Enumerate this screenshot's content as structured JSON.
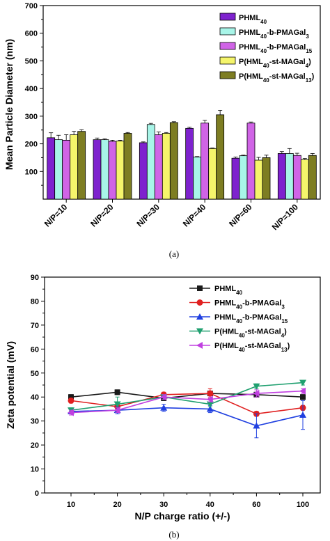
{
  "chart_data": [
    {
      "type": "bar",
      "panel_label": "(a)",
      "ylabel": "Mean Particle Diameter (nm)",
      "xlabel": "",
      "ylim": [
        0,
        700
      ],
      "yticks": [
        100,
        200,
        300,
        400,
        500,
        600,
        700
      ],
      "categories": [
        "N/P=10",
        "N/P=20",
        "N/P=30",
        "N/P=40",
        "N/P=60",
        "N/P=100"
      ],
      "legend_position": "top-right",
      "series": [
        {
          "name": "PHML40",
          "label": {
            "pre": "PHML",
            "sub1": "40",
            "mid": "",
            "sub2": "",
            "post": ""
          },
          "color": "#7e22ce",
          "values": [
            222,
            215,
            204,
            256,
            148,
            165
          ],
          "errors": [
            18,
            6,
            3,
            4,
            4,
            7
          ]
        },
        {
          "name": "PHML40-b-PMAGal3",
          "label": {
            "pre": "PHML",
            "sub1": "40",
            "mid": "-b-PMAGal",
            "sub2": "3",
            "post": ""
          },
          "color": "#a8f5e8",
          "values": [
            215,
            215,
            270,
            152,
            157,
            165
          ],
          "errors": [
            16,
            3,
            4,
            2,
            2,
            18
          ]
        },
        {
          "name": "PHML40-b-PMAGal15",
          "label": {
            "pre": "PHML",
            "sub1": "40",
            "mid": "-b-PMAGal",
            "sub2": "15",
            "post": ""
          },
          "color": "#d064e6",
          "values": [
            213,
            209,
            233,
            275,
            275,
            158
          ],
          "errors": [
            20,
            4,
            10,
            10,
            4,
            8
          ]
        },
        {
          "name": "P(HML40-st-MAGal4)",
          "label": {
            "pre": "P(HML",
            "sub1": "40",
            "mid": "-st-MAGal",
            "sub2": "4",
            "post": ")"
          },
          "color": "#f5f56b",
          "values": [
            233,
            210,
            238,
            183,
            141,
            143
          ],
          "errors": [
            12,
            3,
            3,
            2,
            10,
            4
          ]
        },
        {
          "name": "P(HML40-st-MAGal13)",
          "label": {
            "pre": "P(HML",
            "sub1": "40",
            "mid": "-st-MAGal",
            "sub2": "13",
            "post": ")"
          },
          "color": "#7d7d22",
          "values": [
            245,
            238,
            277,
            305,
            150,
            158
          ],
          "errors": [
            6,
            3,
            3,
            16,
            9,
            7
          ]
        }
      ]
    },
    {
      "type": "line",
      "panel_label": "(b)",
      "ylabel": "Zeta potential (mV)",
      "xlabel": "N/P charge ratio (+/-)",
      "ylim": [
        0,
        90
      ],
      "yticks": [
        0,
        10,
        20,
        30,
        40,
        50,
        60,
        70,
        80,
        90
      ],
      "categories": [
        "10",
        "20",
        "30",
        "40",
        "60",
        "100"
      ],
      "legend_position": "top-right",
      "series": [
        {
          "name": "PHML40",
          "label": {
            "pre": "PHML",
            "sub1": "40",
            "mid": "",
            "sub2": "",
            "post": ""
          },
          "color": "#1a1a1a",
          "marker": "square",
          "values": [
            40,
            42,
            39.5,
            41.5,
            41,
            40
          ],
          "errors": [
            1,
            1,
            1,
            1,
            1,
            1
          ]
        },
        {
          "name": "PHML40-b-PMAGal3",
          "label": {
            "pre": "PHML",
            "sub1": "40",
            "mid": "-b-PMAGal",
            "sub2": "3",
            "post": ""
          },
          "color": "#e02020",
          "marker": "circle",
          "values": [
            38.5,
            36,
            41,
            41.5,
            33,
            35.5
          ],
          "errors": [
            1,
            1,
            1,
            2,
            1,
            1
          ]
        },
        {
          "name": "PHML40-b-PMAGal15",
          "label": {
            "pre": "PHML",
            "sub1": "40",
            "mid": "-b-PMAGal",
            "sub2": "15",
            "post": ""
          },
          "color": "#2040e0",
          "marker": "triangle-up",
          "values": [
            34,
            34.5,
            35.5,
            35,
            28,
            32.5
          ],
          "errors": [
            1,
            1.5,
            1.5,
            1.5,
            5,
            6
          ]
        },
        {
          "name": "P(HML40-st-MAGal4)",
          "label": {
            "pre": "P(HML",
            "sub1": "40",
            "mid": "-st-MAGal",
            "sub2": "4",
            "post": ")"
          },
          "color": "#20a070",
          "marker": "triangle-down",
          "values": [
            34.5,
            37,
            40,
            37,
            44.5,
            46
          ],
          "errors": [
            1,
            3,
            1,
            1,
            1,
            1
          ]
        },
        {
          "name": "P(HML40-st-MAGal13)",
          "label": {
            "pre": "P(HML",
            "sub1": "40",
            "mid": "-st-MAGal",
            "sub2": "13",
            "post": ")"
          },
          "color": "#c040e0",
          "marker": "triangle-left",
          "values": [
            33.5,
            34.5,
            40,
            39,
            41.5,
            42.5
          ],
          "errors": [
            1,
            1,
            1,
            1,
            1.5,
            1
          ]
        }
      ]
    }
  ]
}
